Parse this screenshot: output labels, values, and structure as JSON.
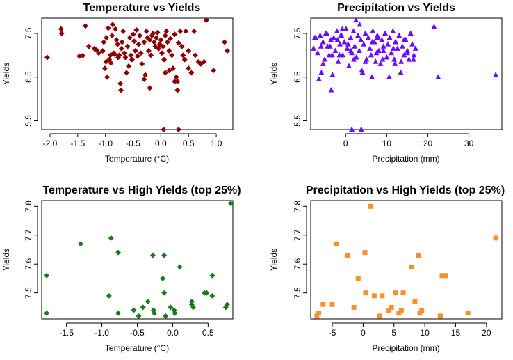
{
  "chart_data": [
    {
      "type": "scatter",
      "title": "Temperature vs Yields",
      "xlabel": "Temperature (°C)",
      "ylabel": "Yields",
      "xlim": [
        -2.15,
        1.3
      ],
      "ylim": [
        5.3,
        7.85
      ],
      "xticks": [
        -2.0,
        -1.5,
        -1.0,
        -0.5,
        0.0,
        0.5,
        1.0
      ],
      "xtick_labels": [
        "-2.0",
        "-1.5",
        "-1.0",
        "-0.5",
        "0.0",
        "0.5",
        "1.0"
      ],
      "yticks": [
        5.5,
        6.5,
        7.5
      ],
      "ytick_labels": [
        "5.5",
        "6.5",
        "7.5"
      ],
      "marker": "diamond",
      "color": "#8b0000",
      "series": [
        {
          "x": [
            -2.05,
            -1.8,
            -1.79,
            -1.47,
            -1.41,
            -1.36,
            -1.3,
            -1.2,
            -1.16,
            -1.12,
            -1.05,
            -1.03,
            -1.01,
            -0.99,
            -0.98,
            -0.97,
            -0.95,
            -0.93,
            -0.91,
            -0.9,
            -0.88,
            -0.87,
            -0.85,
            -0.83,
            -0.82,
            -0.8,
            -0.78,
            -0.77,
            -0.75,
            -0.73,
            -0.71,
            -0.7,
            -0.68,
            -0.66,
            -0.64,
            -0.62,
            -0.6,
            -0.58,
            -0.56,
            -0.54,
            -0.52,
            -0.5,
            -0.48,
            -0.46,
            -0.44,
            -0.42,
            -0.4,
            -0.38,
            -0.36,
            -0.34,
            -0.3,
            -0.28,
            -0.26,
            -0.24,
            -0.22,
            -0.2,
            -0.18,
            -0.16,
            -0.14,
            -0.12,
            -0.1,
            -0.08,
            -0.06,
            -0.04,
            -0.02,
            0.0,
            0.02,
            0.04,
            0.06,
            0.08,
            0.1,
            0.12,
            0.15,
            0.17,
            0.2,
            0.22,
            0.25,
            0.28,
            0.3,
            0.32,
            0.35,
            0.38,
            0.4,
            0.43,
            0.45,
            0.5,
            0.55,
            0.6,
            0.62,
            0.68,
            0.72,
            0.78,
            0.82,
            0.95,
            1.15,
            1.2,
            0.05,
            0.32,
            0.3,
            0.15,
            0.25,
            0.5,
            -0.2,
            0.08,
            -0.3,
            -0.72
          ],
          "y": [
            6.95,
            7.6,
            7.5,
            6.98,
            6.99,
            7.67,
            7.2,
            7.15,
            7.12,
            7.05,
            7.1,
            7.3,
            6.7,
            6.85,
            7.4,
            6.5,
            7.62,
            6.9,
            7.0,
            6.82,
            7.45,
            7.7,
            7.05,
            7.02,
            7.6,
            7.35,
            7.25,
            6.95,
            7.0,
            6.35,
            7.15,
            7.3,
            7.55,
            7.05,
            6.95,
            6.6,
            7.2,
            6.75,
            7.4,
            7.0,
            6.9,
            7.48,
            7.32,
            7.1,
            7.58,
            6.98,
            7.25,
            7.45,
            7.05,
            6.8,
            7.3,
            6.55,
            7.55,
            7.4,
            7.1,
            7.35,
            7.0,
            7.45,
            7.5,
            7.3,
            7.2,
            7.4,
            7.52,
            7.15,
            7.25,
            7.35,
            7.05,
            7.2,
            6.9,
            7.45,
            7.55,
            7.3,
            7.1,
            7.38,
            7.0,
            6.7,
            7.48,
            6.5,
            6.4,
            7.28,
            7.55,
            7.2,
            7.0,
            6.9,
            7.55,
            7.1,
            6.6,
            7.55,
            7.0,
            6.85,
            6.8,
            6.85,
            7.8,
            6.65,
            7.3,
            7.1,
            5.3,
            5.3,
            6.2,
            6.65,
            6.4,
            6.7,
            6.25,
            6.6,
            6.45,
            6.2
          ]
        }
      ]
    },
    {
      "type": "scatter",
      "title": "Precipitation vs Yields",
      "xlabel": "Precipitation (mm)",
      "ylabel": "Yields",
      "xlim": [
        -8.5,
        38
      ],
      "ylim": [
        5.3,
        7.85
      ],
      "xticks": [
        0,
        10,
        20,
        30
      ],
      "xtick_labels": [
        "0",
        "10",
        "20",
        "30"
      ],
      "yticks": [
        5.5,
        6.5,
        7.5
      ],
      "ytick_labels": [
        "5.5",
        "6.5",
        "7.5"
      ],
      "marker": "triangle",
      "color": "#6a0dff",
      "series": [
        {
          "x": [
            -7.8,
            -7.3,
            -6.8,
            -6.2,
            -5.9,
            -5.5,
            -5.1,
            -4.8,
            -4.4,
            -4.0,
            -3.6,
            -3.2,
            -2.9,
            -2.5,
            -2.1,
            -1.8,
            -1.4,
            -1.0,
            -0.7,
            -0.3,
            0.1,
            0.4,
            0.8,
            1.2,
            1.5,
            1.9,
            2.2,
            2.6,
            3.0,
            3.3,
            3.7,
            4.1,
            4.4,
            4.8,
            5.1,
            5.5,
            5.9,
            6.2,
            6.6,
            7.0,
            7.3,
            7.7,
            8.1,
            8.5,
            8.8,
            9.2,
            9.6,
            10.0,
            10.3,
            10.7,
            11.1,
            11.5,
            11.8,
            12.2,
            12.6,
            13.0,
            13.4,
            13.8,
            14.2,
            14.6,
            15.0,
            15.4,
            15.8,
            16.2,
            16.6,
            17.0,
            -7.5,
            -6.0,
            -4.6,
            -3.3,
            -2.0,
            -0.8,
            0.6,
            2.0,
            3.4,
            4.8,
            6.4,
            7.8,
            9.2,
            10.6,
            12.1,
            13.5,
            15.0,
            16.5,
            -6.5,
            -3.8,
            -1.2,
            1.3,
            3.9,
            6.5,
            9.0,
            11.6,
            14.2,
            -5.5,
            -1.5,
            2.5,
            7.5,
            12.0,
            1.5,
            3.8,
            21.5,
            22.5,
            36.5,
            -3.5
          ],
          "y": [
            7.15,
            7.4,
            7.05,
            7.45,
            6.6,
            7.3,
            6.9,
            7.5,
            7.2,
            7.0,
            7.35,
            6.55,
            7.4,
            7.1,
            7.55,
            6.85,
            7.25,
            7.45,
            7.0,
            7.3,
            7.6,
            7.15,
            6.75,
            7.4,
            7.05,
            7.55,
            7.2,
            6.95,
            7.45,
            7.1,
            7.35,
            6.6,
            7.25,
            7.5,
            6.9,
            7.4,
            7.15,
            7.0,
            7.55,
            7.3,
            6.85,
            7.45,
            7.1,
            6.8,
            7.35,
            7.2,
            7.5,
            6.95,
            7.25,
            7.4,
            7.05,
            7.55,
            6.9,
            7.3,
            7.15,
            7.45,
            6.6,
            7.2,
            7.0,
            7.35,
            7.1,
            6.9,
            7.5,
            7.25,
            7.0,
            7.15,
            7.4,
            7.2,
            7.5,
            7.0,
            7.35,
            7.6,
            7.25,
            6.9,
            7.7,
            6.85,
            6.5,
            7.4,
            7.1,
            6.5,
            7.3,
            6.85,
            7.05,
            6.9,
            6.45,
            7.2,
            7.45,
            7.1,
            6.65,
            7.3,
            6.9,
            7.15,
            7.35,
            6.8,
            7.0,
            7.8,
            7.05,
            6.8,
            5.3,
            5.3,
            7.65,
            6.5,
            6.55,
            6.2
          ]
        }
      ]
    },
    {
      "type": "scatter",
      "title": "Temperature vs High Yields (top 25%)",
      "xlabel": "Temperature (°C)",
      "ylabel": "Yields",
      "xlim": [
        -1.85,
        0.85
      ],
      "ylim": [
        7.41,
        7.82
      ],
      "xticks": [
        -1.5,
        -1.0,
        -0.5,
        0.0,
        0.5
      ],
      "xtick_labels": [
        "-1.5",
        "-1.0",
        "-0.5",
        "0.0",
        "0.5"
      ],
      "yticks": [
        7.5,
        7.6,
        7.7,
        7.8
      ],
      "ytick_labels": [
        "7.5",
        "7.6",
        "7.7",
        "7.8"
      ],
      "marker": "diamond",
      "color": "#1a7a1a",
      "series": [
        {
          "x": [
            -1.78,
            -1.78,
            -1.3,
            -0.9,
            -0.87,
            -0.77,
            -0.77,
            -0.55,
            -0.48,
            -0.42,
            -0.35,
            -0.28,
            -0.27,
            -0.26,
            -0.14,
            -0.12,
            -0.12,
            -0.1,
            -0.03,
            0.02,
            0.03,
            0.1,
            0.27,
            0.27,
            0.29,
            0.45,
            0.48,
            0.56,
            0.56,
            0.75,
            0.77,
            0.82
          ],
          "y": [
            7.56,
            7.43,
            7.67,
            7.49,
            7.69,
            7.64,
            7.43,
            7.44,
            7.42,
            7.45,
            7.47,
            7.63,
            7.44,
            7.43,
            7.55,
            7.63,
            7.5,
            7.42,
            7.45,
            7.44,
            7.43,
            7.59,
            7.47,
            7.46,
            7.45,
            7.5,
            7.5,
            7.56,
            7.49,
            7.45,
            7.46,
            7.81
          ]
        }
      ]
    },
    {
      "type": "scatter",
      "title": "Precipitation vs High Yields (top 25%)",
      "xlabel": "Precipitation (mm)",
      "ylabel": "Yields",
      "xlim": [
        -8.5,
        22.5
      ],
      "ylim": [
        7.41,
        7.82
      ],
      "xticks": [
        -5,
        0,
        5,
        10,
        15,
        20
      ],
      "xtick_labels": [
        "-5",
        "0",
        "5",
        "10",
        "15",
        "20"
      ],
      "yticks": [
        7.5,
        7.6,
        7.7,
        7.8
      ],
      "ytick_labels": [
        "7.5",
        "7.6",
        "7.7",
        "7.8"
      ],
      "marker": "square",
      "color": "#f4932c",
      "series": [
        {
          "x": [
            -7.5,
            -7.2,
            -6.5,
            -5.0,
            -4.3,
            -2.5,
            -1.5,
            -0.8,
            0.3,
            0.4,
            1.2,
            1.8,
            2.7,
            3.1,
            4.2,
            4.6,
            5.3,
            5.8,
            6.2,
            6.5,
            7.8,
            8.4,
            9.0,
            9.2,
            9.5,
            12.5,
            12.8,
            13.4,
            17.0,
            21.5
          ],
          "y": [
            7.42,
            7.43,
            7.46,
            7.46,
            7.67,
            7.63,
            7.45,
            7.55,
            7.64,
            7.5,
            7.8,
            7.49,
            7.42,
            7.49,
            7.44,
            7.45,
            7.5,
            7.43,
            7.44,
            7.5,
            7.59,
            7.47,
            7.63,
            7.43,
            7.44,
            7.42,
            7.56,
            7.56,
            7.43,
            7.69
          ]
        }
      ]
    }
  ]
}
